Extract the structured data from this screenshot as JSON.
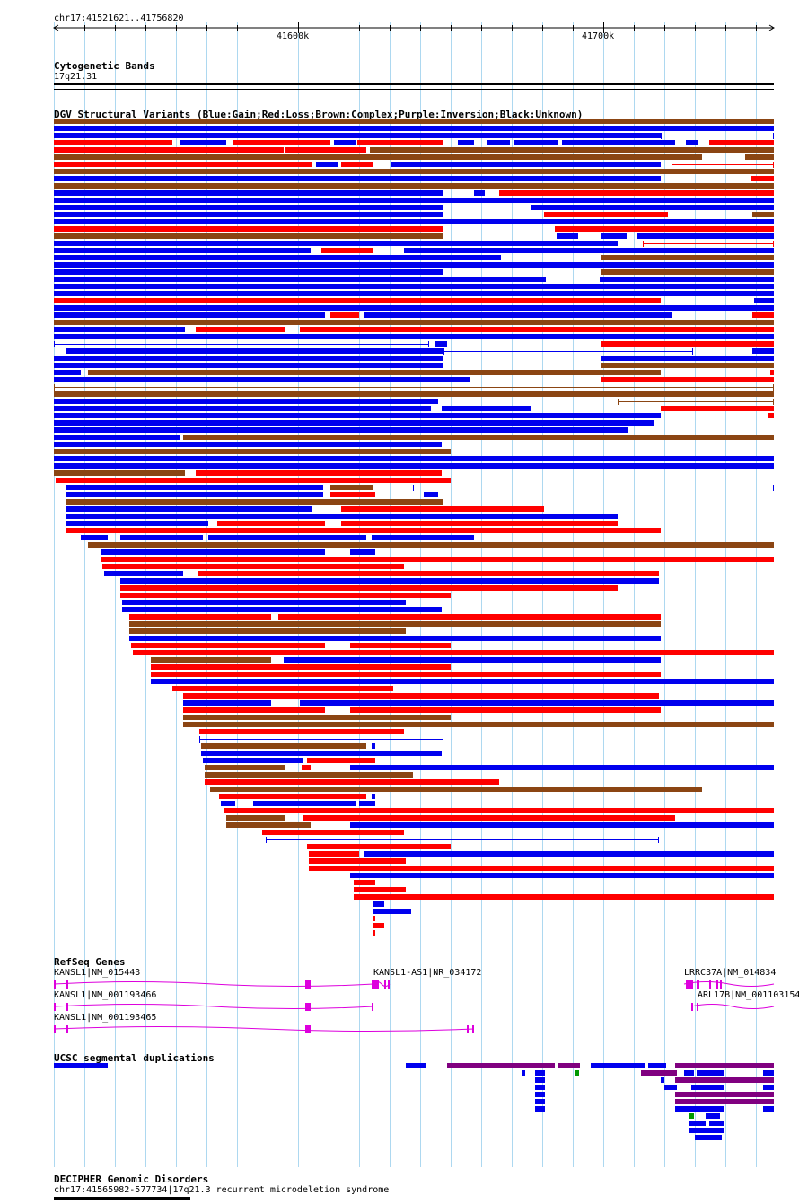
{
  "ruler": {
    "location": "chr17:41521621..41756820",
    "ticks": [
      "41600k",
      "41700k"
    ]
  },
  "tracks": {
    "cytoband": {
      "title": "Cytogenetic Bands",
      "band": "17q21.31"
    },
    "dgv": {
      "title": "DGV Structural Variants (Blue:Gain;Red:Loss;Brown:Complex;Purple:Inversion;Black:Unknown)"
    },
    "refseq": {
      "title": "RefSeq Genes",
      "genes": [
        {
          "label": "KANSL1|NM_015443"
        },
        {
          "label": "KANSL1|NM_001193466"
        },
        {
          "label": "KANSL1|NM_001193465"
        },
        {
          "label": "KANSL1-AS1|NR_034172"
        },
        {
          "label": "LRRC37A|NM_014834"
        },
        {
          "label": "ARL17B|NM_001103154"
        }
      ]
    },
    "segdup": {
      "title": "UCSC segmental duplications"
    },
    "decipher": {
      "title": "DECIPHER Genomic Disorders",
      "feature": "chr17:41565982-577734|17q21.3 recurrent microdeletion syndrome"
    }
  },
  "colors": {
    "gain": "#0000ee",
    "loss": "#ff0000",
    "complex": "#8b4513",
    "gene": "#dd00dd",
    "segdup_purple": "#800080",
    "segdup_green": "#009900",
    "grid": "#add8f0"
  }
}
